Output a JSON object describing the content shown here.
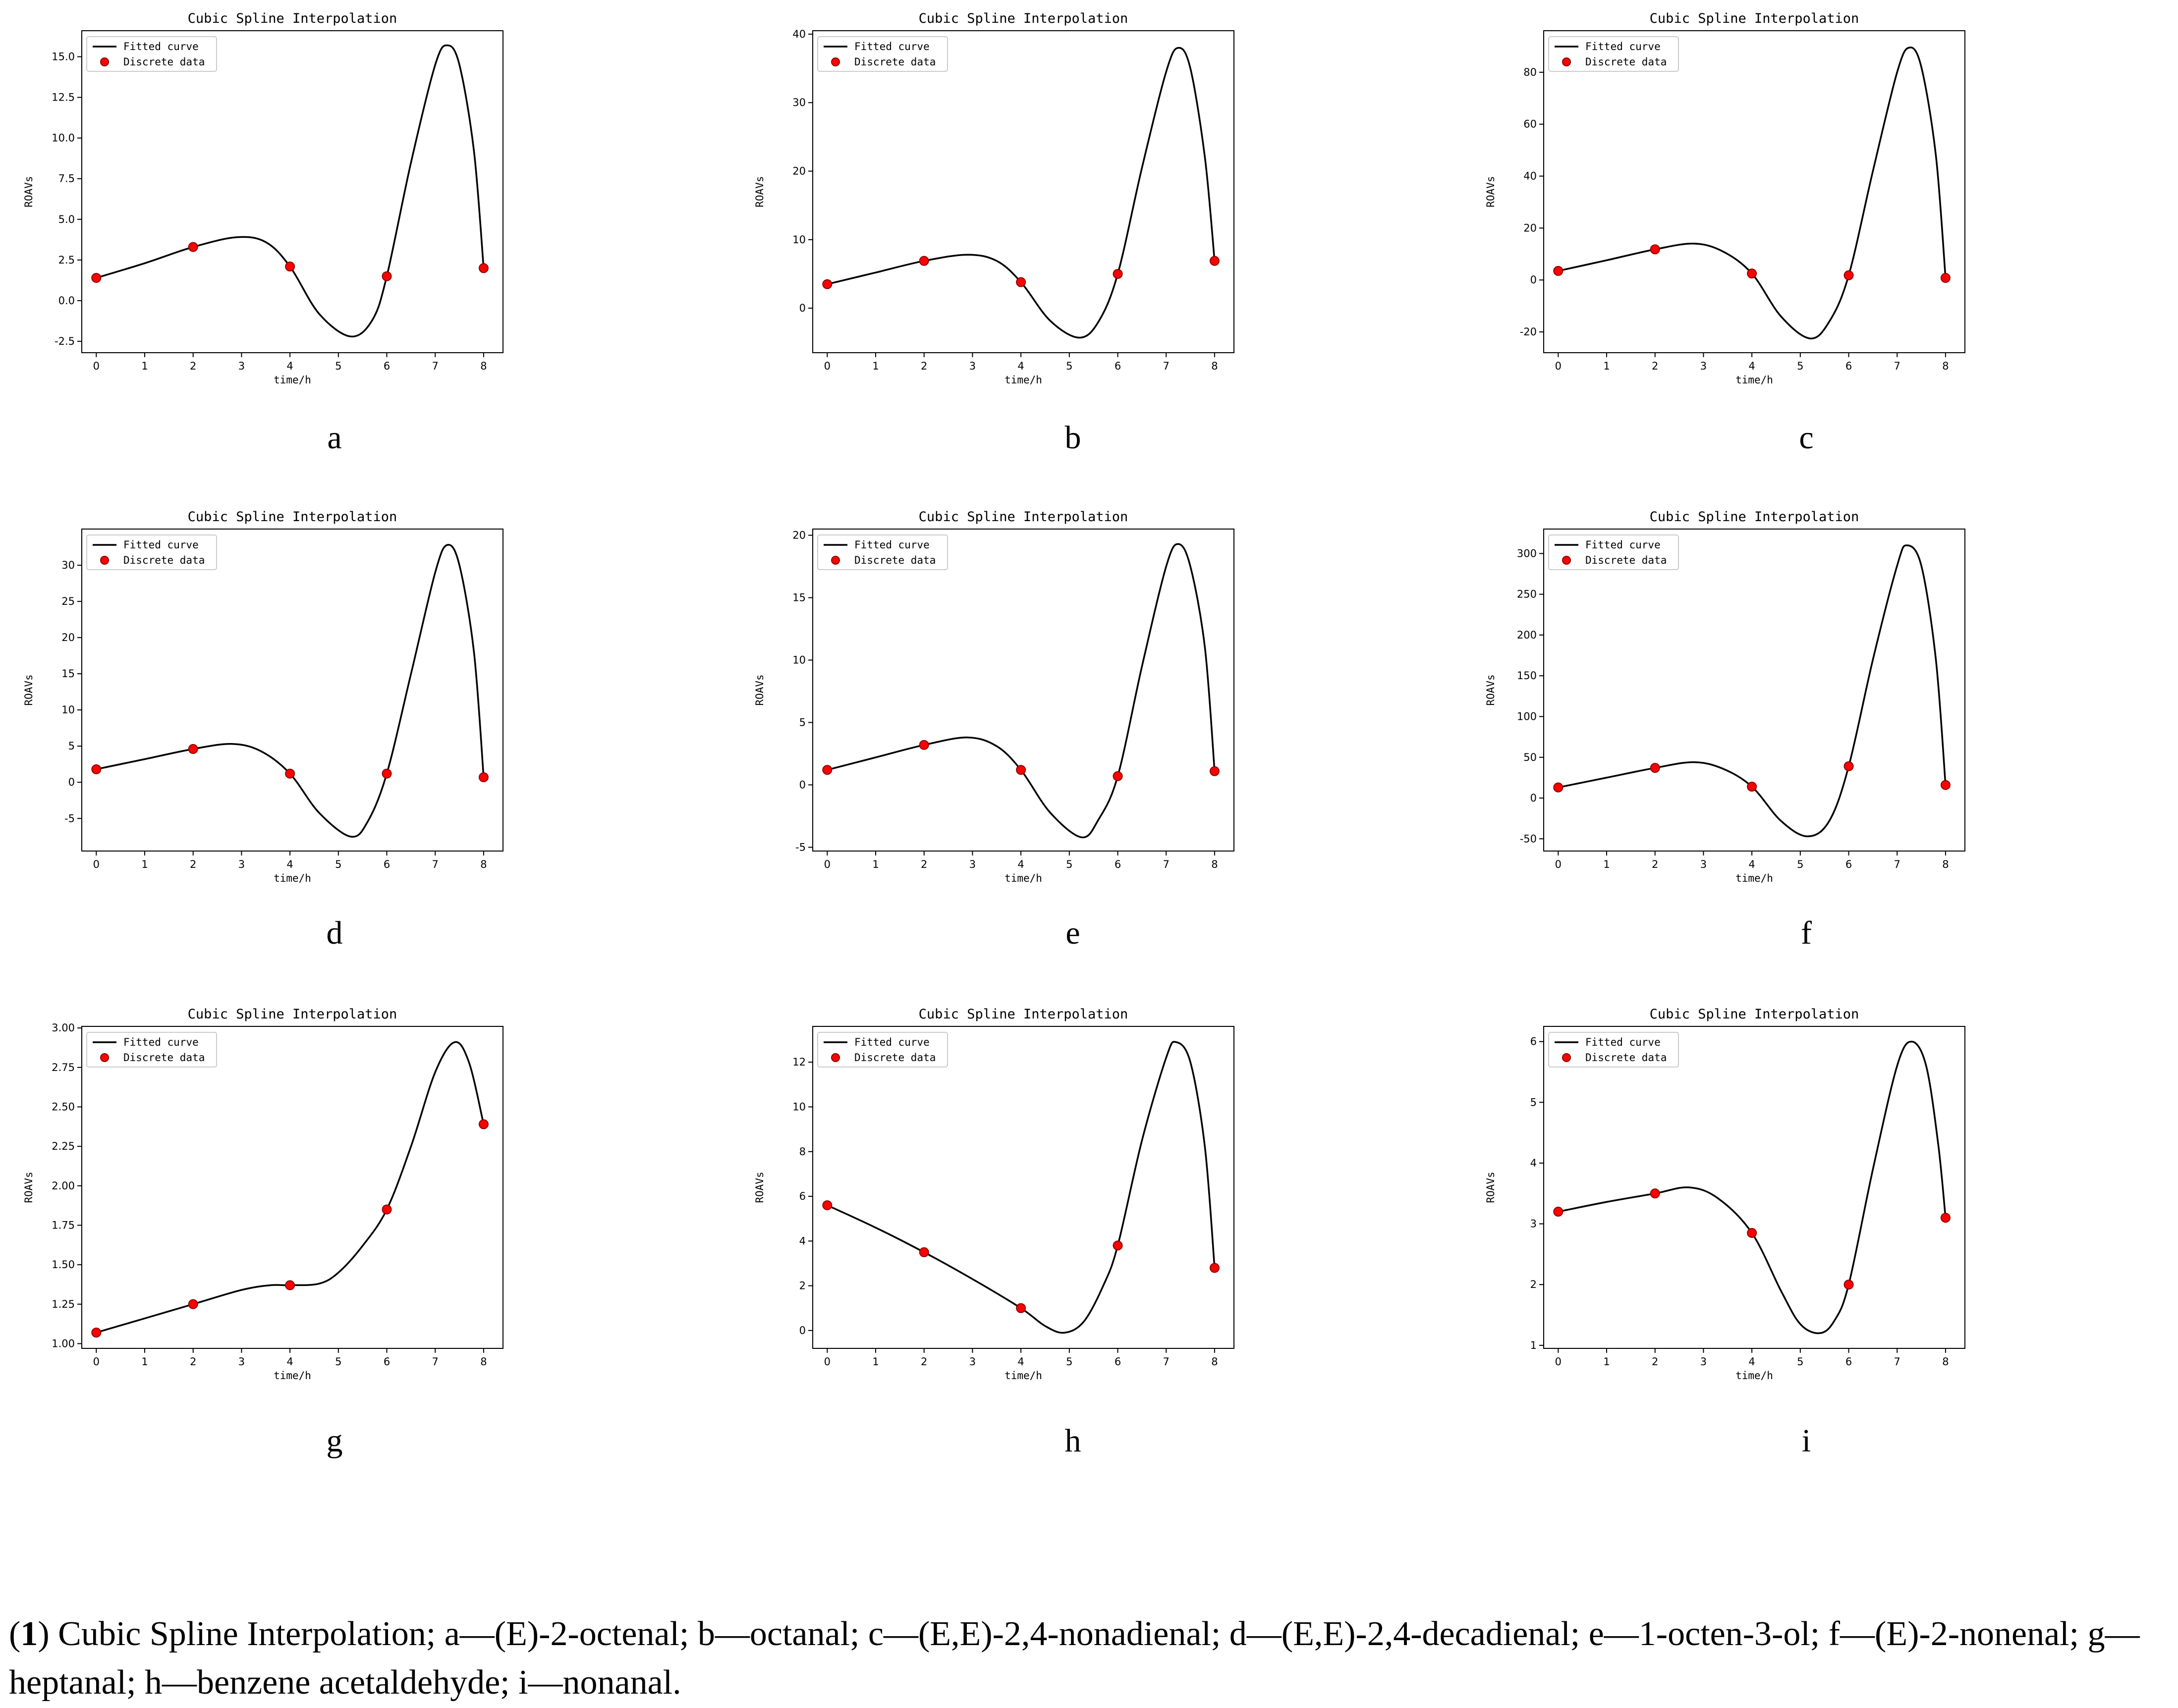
{
  "caption": {
    "prefix_open": "(",
    "prefix_num": "1",
    "prefix_close": ")",
    "text": " Cubic Spline Interpolation; a—(E)-2-octenal; b—octanal; c—(E,E)-2,4-nonadienal; d—(E,E)-2,4-decadienal; e—1-octen-3-ol; f—(E)-2-nonenal; g—heptanal; h—benzene acetaldehyde; i—nonanal."
  },
  "colors": {
    "curve": "#000000",
    "points": "#ff0000",
    "point_edge": "#8b0000",
    "background": "#ffffff"
  },
  "chart_data": [
    {
      "type": "line",
      "letter": "a",
      "title": "Cubic Spline Interpolation",
      "xlabel": "time/h",
      "ylabel": "ROAVs",
      "legend": [
        "Fitted curve",
        "Discrete data"
      ],
      "legend_position": "top-left",
      "grid": false,
      "xlim": [
        -0.3,
        8.4
      ],
      "ylim": [
        -3.2,
        16.6
      ],
      "xticks": [
        0,
        1,
        2,
        3,
        4,
        5,
        6,
        7,
        8
      ],
      "yticks": [
        -2.5,
        0.0,
        2.5,
        5.0,
        7.5,
        10.0,
        12.5,
        15.0
      ],
      "ytick_labels": [
        "-2.5",
        "0.0",
        "2.5",
        "5.0",
        "7.5",
        "10.0",
        "12.5",
        "15.0"
      ],
      "x": [
        0,
        2,
        4,
        6,
        8
      ],
      "y": [
        1.4,
        3.3,
        2.1,
        1.5,
        2.0
      ],
      "curve": [
        [
          0,
          1.4
        ],
        [
          1,
          2.3
        ],
        [
          2,
          3.3
        ],
        [
          2.9,
          3.9
        ],
        [
          3.5,
          3.6
        ],
        [
          4,
          2.1
        ],
        [
          4.6,
          -0.8
        ],
        [
          5.25,
          -2.2
        ],
        [
          5.7,
          -1.2
        ],
        [
          6,
          1.5
        ],
        [
          6.5,
          8.5
        ],
        [
          7,
          14.5
        ],
        [
          7.25,
          15.7
        ],
        [
          7.5,
          14.5
        ],
        [
          7.8,
          9.2
        ],
        [
          8,
          2.0
        ]
      ]
    },
    {
      "type": "line",
      "letter": "b",
      "title": "Cubic Spline Interpolation",
      "xlabel": "time/h",
      "ylabel": "ROAVs",
      "legend": [
        "Fitted curve",
        "Discrete data"
      ],
      "legend_position": "top-left",
      "grid": false,
      "xlim": [
        -0.3,
        8.4
      ],
      "ylim": [
        -6.5,
        40.5
      ],
      "xticks": [
        0,
        1,
        2,
        3,
        4,
        5,
        6,
        7,
        8
      ],
      "yticks": [
        0,
        10,
        20,
        30,
        40
      ],
      "ytick_labels": [
        "0",
        "10",
        "20",
        "30",
        "40"
      ],
      "x": [
        0,
        2,
        4,
        6,
        8
      ],
      "y": [
        3.5,
        6.9,
        3.8,
        5.0,
        6.9
      ],
      "curve": [
        [
          0,
          3.5
        ],
        [
          1,
          5.2
        ],
        [
          2,
          6.9
        ],
        [
          2.9,
          7.8
        ],
        [
          3.5,
          6.9
        ],
        [
          4,
          3.8
        ],
        [
          4.6,
          -1.8
        ],
        [
          5.2,
          -4.3
        ],
        [
          5.6,
          -2.0
        ],
        [
          6,
          5.0
        ],
        [
          6.5,
          20.5
        ],
        [
          7,
          34.5
        ],
        [
          7.25,
          38.0
        ],
        [
          7.5,
          35.0
        ],
        [
          7.8,
          22.0
        ],
        [
          8,
          6.9
        ]
      ]
    },
    {
      "type": "line",
      "letter": "c",
      "title": "Cubic Spline Interpolation",
      "xlabel": "time/h",
      "ylabel": "ROAVs",
      "legend": [
        "Fitted curve",
        "Discrete data"
      ],
      "legend_position": "top-left",
      "grid": false,
      "xlim": [
        -0.3,
        8.4
      ],
      "ylim": [
        -28,
        96
      ],
      "xticks": [
        0,
        1,
        2,
        3,
        4,
        5,
        6,
        7,
        8
      ],
      "yticks": [
        -20,
        0,
        20,
        40,
        60,
        80
      ],
      "ytick_labels": [
        "-20",
        "0",
        "20",
        "40",
        "60",
        "80"
      ],
      "x": [
        0,
        2,
        4,
        6,
        8
      ],
      "y": [
        3.5,
        11.8,
        2.5,
        1.8,
        0.8
      ],
      "curve": [
        [
          0,
          3.5
        ],
        [
          1,
          7.6
        ],
        [
          2,
          11.8
        ],
        [
          2.8,
          14.0
        ],
        [
          3.4,
          11.0
        ],
        [
          4,
          2.5
        ],
        [
          4.6,
          -14.0
        ],
        [
          5.2,
          -22.5
        ],
        [
          5.6,
          -16.0
        ],
        [
          6,
          1.8
        ],
        [
          6.5,
          42.0
        ],
        [
          7,
          80.0
        ],
        [
          7.25,
          89.5
        ],
        [
          7.5,
          82.0
        ],
        [
          7.8,
          48.0
        ],
        [
          8,
          0.8
        ]
      ]
    },
    {
      "type": "line",
      "letter": "d",
      "title": "Cubic Spline Interpolation",
      "xlabel": "time/h",
      "ylabel": "ROAVs",
      "legend": [
        "Fitted curve",
        "Discrete data"
      ],
      "legend_position": "top-left",
      "grid": false,
      "xlim": [
        -0.3,
        8.4
      ],
      "ylim": [
        -9.5,
        35
      ],
      "xticks": [
        0,
        1,
        2,
        3,
        4,
        5,
        6,
        7,
        8
      ],
      "yticks": [
        -5,
        0,
        5,
        10,
        15,
        20,
        25,
        30
      ],
      "ytick_labels": [
        "-5",
        "0",
        "5",
        "10",
        "15",
        "20",
        "25",
        "30"
      ],
      "x": [
        0,
        2,
        4,
        6,
        8
      ],
      "y": [
        1.8,
        4.6,
        1.2,
        1.2,
        0.7
      ],
      "curve": [
        [
          0,
          1.8
        ],
        [
          1,
          3.2
        ],
        [
          2,
          4.6
        ],
        [
          2.8,
          5.3
        ],
        [
          3.4,
          4.3
        ],
        [
          4,
          1.2
        ],
        [
          4.6,
          -4.2
        ],
        [
          5.25,
          -7.5
        ],
        [
          5.6,
          -5.5
        ],
        [
          6,
          1.2
        ],
        [
          6.5,
          15.0
        ],
        [
          7,
          29.0
        ],
        [
          7.25,
          32.8
        ],
        [
          7.5,
          30.0
        ],
        [
          7.8,
          18.0
        ],
        [
          8,
          0.7
        ]
      ]
    },
    {
      "type": "line",
      "letter": "e",
      "title": "Cubic Spline Interpolation",
      "xlabel": "time/h",
      "ylabel": "ROAVs",
      "legend": [
        "Fitted curve",
        "Discrete data"
      ],
      "legend_position": "top-left",
      "grid": false,
      "xlim": [
        -0.3,
        8.4
      ],
      "ylim": [
        -5.3,
        20.5
      ],
      "xticks": [
        0,
        1,
        2,
        3,
        4,
        5,
        6,
        7,
        8
      ],
      "yticks": [
        -5,
        0,
        5,
        10,
        15,
        20
      ],
      "ytick_labels": [
        "-5",
        "0",
        "5",
        "10",
        "15",
        "20"
      ],
      "x": [
        0,
        2,
        4,
        6,
        8
      ],
      "y": [
        1.2,
        3.2,
        1.2,
        0.7,
        1.1
      ],
      "curve": [
        [
          0,
          1.2
        ],
        [
          1,
          2.2
        ],
        [
          2,
          3.2
        ],
        [
          2.9,
          3.8
        ],
        [
          3.5,
          3.1
        ],
        [
          4,
          1.2
        ],
        [
          4.6,
          -2.2
        ],
        [
          5.25,
          -4.2
        ],
        [
          5.6,
          -2.8
        ],
        [
          6,
          0.7
        ],
        [
          6.5,
          9.5
        ],
        [
          7,
          17.5
        ],
        [
          7.25,
          19.3
        ],
        [
          7.5,
          17.5
        ],
        [
          7.8,
          11.0
        ],
        [
          8,
          1.1
        ]
      ]
    },
    {
      "type": "line",
      "letter": "f",
      "title": "Cubic Spline Interpolation",
      "xlabel": "time/h",
      "ylabel": "ROAVs",
      "legend": [
        "Fitted curve",
        "Discrete data"
      ],
      "legend_position": "top-left",
      "grid": false,
      "xlim": [
        -0.3,
        8.4
      ],
      "ylim": [
        -65,
        330
      ],
      "xticks": [
        0,
        1,
        2,
        3,
        4,
        5,
        6,
        7,
        8
      ],
      "yticks": [
        -50,
        0,
        50,
        100,
        150,
        200,
        250,
        300
      ],
      "ytick_labels": [
        "-50",
        "0",
        "50",
        "100",
        "150",
        "200",
        "250",
        "300"
      ],
      "x": [
        0,
        2,
        4,
        6,
        8
      ],
      "y": [
        13,
        37,
        14,
        39,
        16
      ],
      "curve": [
        [
          0,
          13
        ],
        [
          1,
          25
        ],
        [
          2,
          37
        ],
        [
          2.8,
          44
        ],
        [
          3.4,
          36
        ],
        [
          4,
          14
        ],
        [
          4.6,
          -28
        ],
        [
          5.15,
          -47
        ],
        [
          5.6,
          -28
        ],
        [
          6,
          39
        ],
        [
          6.5,
          170
        ],
        [
          7,
          285
        ],
        [
          7.2,
          310
        ],
        [
          7.5,
          285
        ],
        [
          7.8,
          170
        ],
        [
          8,
          16
        ]
      ]
    },
    {
      "type": "line",
      "letter": "g",
      "title": "Cubic Spline Interpolation",
      "xlabel": "time/h",
      "ylabel": "ROAVs",
      "legend": [
        "Fitted curve",
        "Discrete data"
      ],
      "legend_position": "top-left",
      "grid": false,
      "xlim": [
        -0.3,
        8.4
      ],
      "ylim": [
        0.97,
        3.01
      ],
      "xticks": [
        0,
        1,
        2,
        3,
        4,
        5,
        6,
        7,
        8
      ],
      "yticks": [
        1.0,
        1.25,
        1.5,
        1.75,
        2.0,
        2.25,
        2.5,
        2.75,
        3.0
      ],
      "ytick_labels": [
        "1.00",
        "1.25",
        "1.50",
        "1.75",
        "2.00",
        "2.25",
        "2.50",
        "2.75",
        "3.00"
      ],
      "x": [
        0,
        2,
        4,
        6,
        8
      ],
      "y": [
        1.07,
        1.25,
        1.37,
        1.85,
        2.39
      ],
      "curve": [
        [
          0,
          1.07
        ],
        [
          1,
          1.16
        ],
        [
          2,
          1.25
        ],
        [
          3,
          1.34
        ],
        [
          3.6,
          1.37
        ],
        [
          4,
          1.37
        ],
        [
          4.6,
          1.38
        ],
        [
          5,
          1.45
        ],
        [
          5.5,
          1.62
        ],
        [
          6,
          1.85
        ],
        [
          6.5,
          2.25
        ],
        [
          7,
          2.72
        ],
        [
          7.4,
          2.91
        ],
        [
          7.7,
          2.78
        ],
        [
          8,
          2.39
        ]
      ]
    },
    {
      "type": "line",
      "letter": "h",
      "title": "Cubic Spline Interpolation",
      "xlabel": "time/h",
      "ylabel": "ROAVs",
      "legend": [
        "Fitted curve",
        "Discrete data"
      ],
      "legend_position": "top-left",
      "grid": false,
      "xlim": [
        -0.3,
        8.4
      ],
      "ylim": [
        -0.8,
        13.6
      ],
      "xticks": [
        0,
        1,
        2,
        3,
        4,
        5,
        6,
        7,
        8
      ],
      "yticks": [
        0,
        2,
        4,
        6,
        8,
        10,
        12
      ],
      "ytick_labels": [
        "0",
        "2",
        "4",
        "6",
        "8",
        "10",
        "12"
      ],
      "x": [
        0,
        2,
        4,
        6,
        8
      ],
      "y": [
        5.6,
        3.5,
        1.0,
        3.8,
        2.8
      ],
      "curve": [
        [
          0,
          5.6
        ],
        [
          1,
          4.6
        ],
        [
          2,
          3.5
        ],
        [
          3,
          2.3
        ],
        [
          4,
          1.0
        ],
        [
          4.5,
          0.2
        ],
        [
          4.9,
          -0.1
        ],
        [
          5.3,
          0.4
        ],
        [
          5.7,
          2.0
        ],
        [
          6,
          3.8
        ],
        [
          6.5,
          8.5
        ],
        [
          7,
          12.2
        ],
        [
          7.2,
          12.9
        ],
        [
          7.5,
          12.0
        ],
        [
          7.8,
          8.2
        ],
        [
          8,
          2.8
        ]
      ]
    },
    {
      "type": "line",
      "letter": "i",
      "title": "Cubic Spline Interpolation",
      "xlabel": "time/h",
      "ylabel": "ROAVs",
      "legend": [
        "Fitted curve",
        "Discrete data"
      ],
      "legend_position": "top-left",
      "grid": false,
      "xlim": [
        -0.3,
        8.4
      ],
      "ylim": [
        0.95,
        6.25
      ],
      "xticks": [
        0,
        1,
        2,
        3,
        4,
        5,
        6,
        7,
        8
      ],
      "yticks": [
        1,
        2,
        3,
        4,
        5,
        6
      ],
      "ytick_labels": [
        "1",
        "2",
        "3",
        "4",
        "5",
        "6"
      ],
      "x": [
        0,
        2,
        4,
        6,
        8
      ],
      "y": [
        3.2,
        3.5,
        2.85,
        2.0,
        3.1
      ],
      "curve": [
        [
          0,
          3.2
        ],
        [
          1,
          3.36
        ],
        [
          2,
          3.5
        ],
        [
          2.7,
          3.6
        ],
        [
          3.3,
          3.42
        ],
        [
          4,
          2.85
        ],
        [
          4.6,
          1.9
        ],
        [
          5.0,
          1.35
        ],
        [
          5.4,
          1.2
        ],
        [
          5.7,
          1.4
        ],
        [
          6,
          2.0
        ],
        [
          6.5,
          3.9
        ],
        [
          7,
          5.6
        ],
        [
          7.3,
          6.0
        ],
        [
          7.6,
          5.6
        ],
        [
          7.85,
          4.3
        ],
        [
          8,
          3.1
        ]
      ]
    }
  ]
}
